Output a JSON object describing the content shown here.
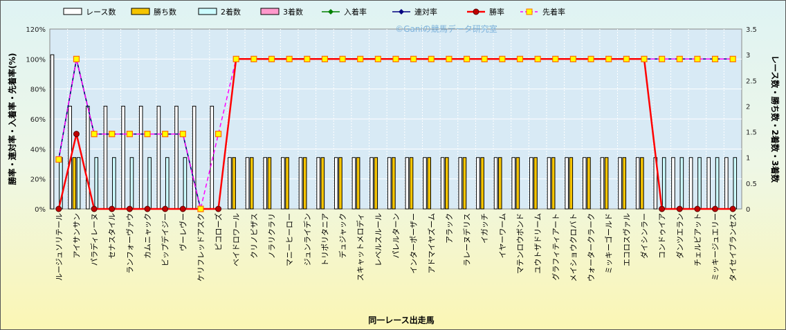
{
  "chart_data": {
    "type": "bar+line",
    "watermark": "©Ganiの競馬データ研究室",
    "xlabel": "同一レース出走馬",
    "ylabel_left": "勝率・連対率・入着率・先着率(%)",
    "ylabel_right": "レース数・勝ち数・2着数・3着数",
    "ylim_left": [
      0,
      120
    ],
    "ylim_right": [
      0,
      3.5
    ],
    "yticks_left": [
      "0%",
      "20%",
      "40%",
      "60%",
      "80%",
      "100%",
      "120%"
    ],
    "yticks_right": [
      "0",
      "0.5",
      "1",
      "1.5",
      "2",
      "2.5",
      "3",
      "3.5"
    ],
    "grid": true,
    "legend_position": "top",
    "legend": [
      {
        "key": "races",
        "label": "レース数"
      },
      {
        "key": "wins",
        "label": "勝ち数"
      },
      {
        "key": "second",
        "label": "2着数"
      },
      {
        "key": "third",
        "label": "3着数"
      },
      {
        "key": "place_rate",
        "label": "入着率"
      },
      {
        "key": "rentai_rate",
        "label": "連対率"
      },
      {
        "key": "win_rate",
        "label": "勝率"
      },
      {
        "key": "senchaku_rate",
        "label": "先着率"
      }
    ],
    "colors": {
      "races": "#ffffff",
      "wins": "#f5c400",
      "second": "#ccfcff",
      "third": "#ff99cc",
      "place_rate": "#008000",
      "rentai_rate": "#000080",
      "win_rate": "#ff0000",
      "senchaku_rate": "#ff00ff",
      "senchaku_marker": "#ffff00",
      "plot_bg": "#d8eaf5"
    },
    "categories": [
      "ルージュソリテール",
      "アイサンサン",
      "パラディレーヌ",
      "セナスタイル",
      "ランフォーヴァウ",
      "カムニャック",
      "ビップデイジー",
      "ヴーレヴー",
      "ケリフレッドアスク",
      "ピコローズ",
      "ベイドロワール",
      "クリノビザス",
      "ノラリクラリ",
      "マニーヒーロー",
      "ジュンライデン",
      "トリポリタニア",
      "デュジャック",
      "スキャットメロディ",
      "レベルスルール",
      "パレルターン",
      "インターポーザー",
      "アドマイヤズーム",
      "アラック",
      "ラレーヌデリス",
      "イガッチ",
      "イヤーワーム",
      "マテンロウボンド",
      "ユウトザドリーム",
      "グラフィティアート",
      "メイショウクロバト",
      "ウォータークラーク",
      "ミッキーゴールド",
      "エコロスヴァル",
      "ダイシンラー",
      "コンドゥイア",
      "ダンツエラン",
      "チェルビアット",
      "ミッキージュエリー",
      "タイセイブランセス"
    ],
    "series": [
      {
        "key": "races",
        "values": [
          3,
          2,
          2,
          2,
          2,
          2,
          2,
          2,
          2,
          2,
          1,
          1,
          1,
          1,
          1,
          1,
          1,
          1,
          1,
          1,
          1,
          1,
          1,
          1,
          1,
          1,
          1,
          1,
          1,
          1,
          1,
          1,
          1,
          1,
          1,
          1,
          1,
          1,
          1
        ]
      },
      {
        "key": "wins",
        "values": [
          0,
          1,
          0,
          0,
          0,
          0,
          0,
          0,
          0,
          0,
          1,
          1,
          1,
          1,
          1,
          1,
          1,
          1,
          1,
          1,
          1,
          1,
          1,
          1,
          1,
          1,
          1,
          1,
          1,
          1,
          1,
          1,
          1,
          1,
          0,
          0,
          0,
          0,
          0
        ]
      },
      {
        "key": "second",
        "values": [
          1,
          1,
          1,
          1,
          1,
          1,
          1,
          1,
          0,
          0,
          0,
          0,
          0,
          0,
          0,
          0,
          0,
          0,
          0,
          0,
          0,
          0,
          0,
          0,
          0,
          0,
          0,
          0,
          0,
          0,
          0,
          0,
          0,
          0,
          1,
          1,
          1,
          1,
          1
        ]
      },
      {
        "key": "third",
        "values": [
          0,
          0,
          0,
          0,
          0,
          0,
          0,
          0,
          0,
          0,
          0,
          0,
          0,
          0,
          0,
          0,
          0,
          0,
          0,
          0,
          0,
          0,
          0,
          0,
          0,
          0,
          0,
          0,
          0,
          0,
          0,
          0,
          0,
          0,
          0,
          0,
          0,
          0,
          0
        ]
      },
      {
        "key": "place_rate",
        "values": [
          33,
          100,
          50,
          50,
          50,
          50,
          50,
          50,
          0,
          0,
          100,
          100,
          100,
          100,
          100,
          100,
          100,
          100,
          100,
          100,
          100,
          100,
          100,
          100,
          100,
          100,
          100,
          100,
          100,
          100,
          100,
          100,
          100,
          100,
          100,
          100,
          100,
          100,
          100
        ]
      },
      {
        "key": "rentai_rate",
        "values": [
          33,
          100,
          50,
          50,
          50,
          50,
          50,
          50,
          0,
          0,
          100,
          100,
          100,
          100,
          100,
          100,
          100,
          100,
          100,
          100,
          100,
          100,
          100,
          100,
          100,
          100,
          100,
          100,
          100,
          100,
          100,
          100,
          100,
          100,
          100,
          100,
          100,
          100,
          100
        ]
      },
      {
        "key": "win_rate",
        "values": [
          0,
          50,
          0,
          0,
          0,
          0,
          0,
          0,
          0,
          0,
          100,
          100,
          100,
          100,
          100,
          100,
          100,
          100,
          100,
          100,
          100,
          100,
          100,
          100,
          100,
          100,
          100,
          100,
          100,
          100,
          100,
          100,
          100,
          100,
          0,
          0,
          0,
          0,
          0
        ]
      },
      {
        "key": "senchaku_rate",
        "values": [
          33,
          100,
          50,
          50,
          50,
          50,
          50,
          50,
          0,
          50,
          100,
          100,
          100,
          100,
          100,
          100,
          100,
          100,
          100,
          100,
          100,
          100,
          100,
          100,
          100,
          100,
          100,
          100,
          100,
          100,
          100,
          100,
          100,
          100,
          100,
          100,
          100,
          100,
          100
        ]
      }
    ]
  }
}
